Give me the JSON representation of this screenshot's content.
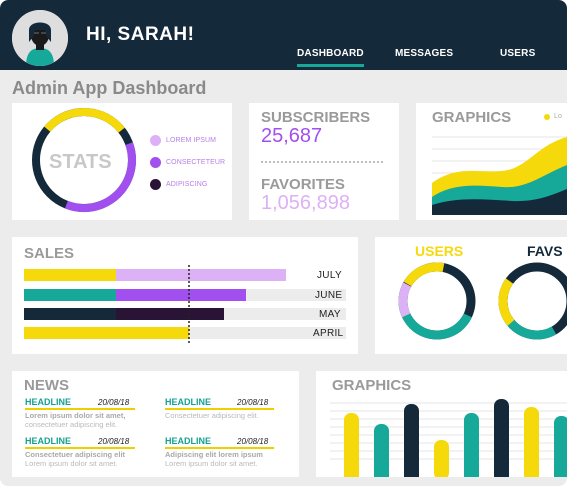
{
  "header": {
    "greeting": "HI, SARAH!",
    "nav": [
      "DASHBOARD",
      "MESSAGES",
      "USERS"
    ],
    "active_nav": "DASHBOARD"
  },
  "page_title": "Admin App Dashboard",
  "stats": {
    "title": "STATS",
    "legend": [
      {
        "label": "LOREM IPSUM",
        "color": "#ddb1f5"
      },
      {
        "label": "CONSECTETEUR",
        "color": "#a24ff0"
      },
      {
        "label": "ADIPISCING",
        "color": "#2a1436"
      }
    ]
  },
  "subscribers": {
    "label": "SUBSCRIBERS",
    "value": "25,687"
  },
  "favorites": {
    "label": "FAVORITES",
    "value": "1,056,898"
  },
  "graphics_top": {
    "title": "GRAPHICS",
    "legend_label": "Lo"
  },
  "sales": {
    "title": "SALES",
    "rows": [
      {
        "label": "JULY"
      },
      {
        "label": "JUNE"
      },
      {
        "label": "MAY"
      },
      {
        "label": "APRIL"
      }
    ]
  },
  "users_card": {
    "users": "USERS",
    "favs": "FAVS"
  },
  "news": {
    "title": "NEWS",
    "items": [
      {
        "headline": "HEADLINE",
        "date": "20/08/18",
        "line1": "Lorem ipsum dolor sit amet,",
        "line2": "consectetuer adipiscing elit."
      },
      {
        "headline": "HEADLINE",
        "date": "20/08/18",
        "line1": "Consectetuer adipiscing elit.",
        "line2": ""
      },
      {
        "headline": "HEADLINE",
        "date": "20/08/18",
        "line1": "Consectetuer adipiscing elit",
        "line2": "Lorem ipsum dolor sit amet."
      },
      {
        "headline": "HEADLINE",
        "date": "20/08/18",
        "line1": "Adipiscing elit lorem ipsum",
        "line2": "Lorem ipsum dolor sit amet."
      }
    ]
  },
  "graphics_bottom": {
    "title": "GRAPHICS"
  },
  "colors": {
    "navy": "#14293a",
    "teal": "#16a899",
    "yellow": "#f5d90a",
    "purple": "#a24ff0",
    "lilac": "#ddb1f5"
  }
}
